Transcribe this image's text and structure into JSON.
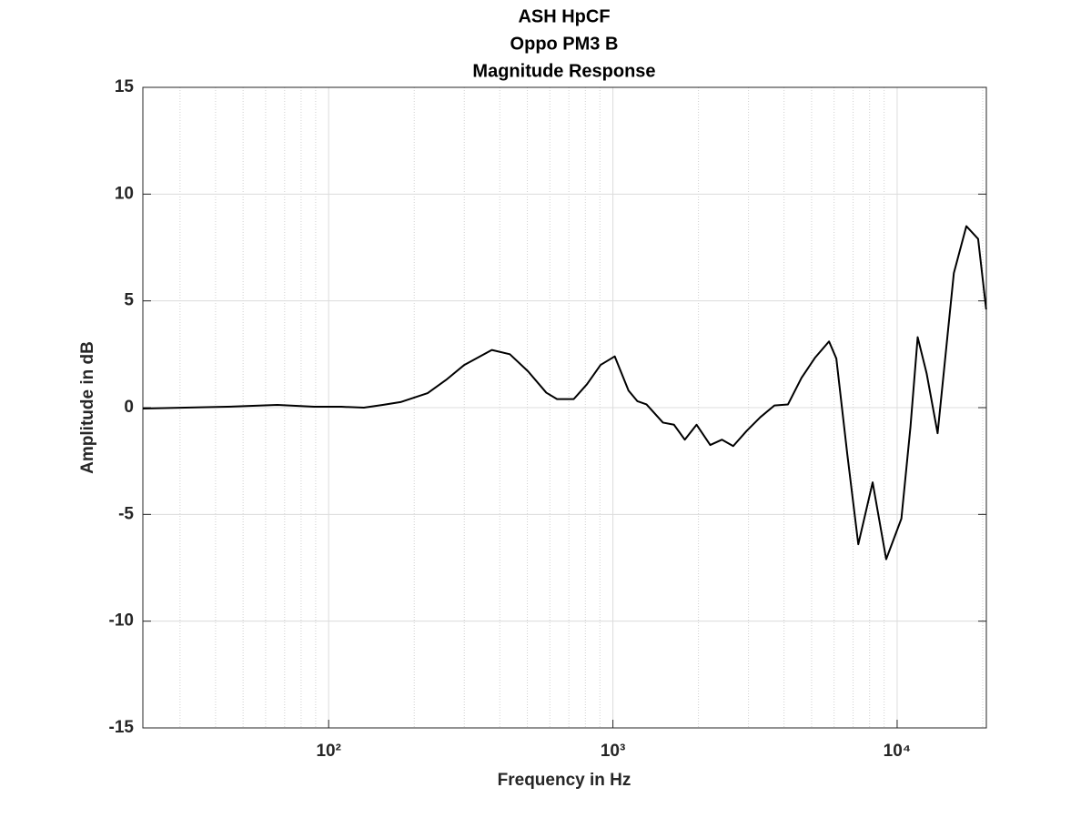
{
  "chart_data": {
    "type": "line",
    "title": "ASH HpCF",
    "subtitle": "Oppo PM3 B",
    "subtitle2": "Magnitude Response",
    "x_label": "Frequency in Hz",
    "y_label": "Amplitude in dB",
    "log_x": true,
    "grid": true,
    "color": "#000000",
    "xlim": [
      22.2,
      20600
    ],
    "ylim": [
      -15,
      15
    ],
    "xticks": [
      {
        "value": 100,
        "label": "10²"
      },
      {
        "value": 1000,
        "label": "10³"
      },
      {
        "value": 10000,
        "label": "10⁴"
      }
    ],
    "xminorticks": [
      30,
      40,
      50,
      60,
      70,
      80,
      90,
      200,
      300,
      400,
      500,
      600,
      700,
      800,
      900,
      2000,
      3000,
      4000,
      5000,
      6000,
      7000,
      8000,
      9000,
      20000
    ],
    "yticks": [
      -15,
      -10,
      -5,
      0,
      5,
      10,
      15
    ],
    "x": [
      22.2,
      44,
      66,
      89,
      111,
      133,
      155,
      179,
      223,
      259,
      300,
      375,
      434,
      503,
      583,
      636,
      728,
      811,
      905,
      1015,
      1135,
      1220,
      1313,
      1500,
      1640,
      1790,
      1970,
      2200,
      2420,
      2650,
      2950,
      3300,
      3700,
      4130,
      4610,
      5150,
      5760,
      6110,
      6680,
      7300,
      8200,
      9150,
      10350,
      11140,
      11810,
      12700,
      13880,
      15830,
      17520,
      19270,
      20570
    ],
    "values": [
      -0.04,
      0.04,
      0.13,
      0.04,
      0.04,
      0,
      0.13,
      0.26,
      0.68,
      1.3,
      2.0,
      2.7,
      2.5,
      1.7,
      0.7,
      0.4,
      0.4,
      1.1,
      2.0,
      2.4,
      0.8,
      0.3,
      0.15,
      -0.7,
      -0.8,
      -1.5,
      -0.8,
      -1.75,
      -1.5,
      -1.8,
      -1.1,
      -0.45,
      0.1,
      0.15,
      1.4,
      2.35,
      3.1,
      2.3,
      -2.2,
      -6.4,
      -3.5,
      -7.1,
      -5.2,
      -0.9,
      3.3,
      1.6,
      -1.2,
      6.3,
      8.5,
      7.9,
      4.6
    ]
  }
}
